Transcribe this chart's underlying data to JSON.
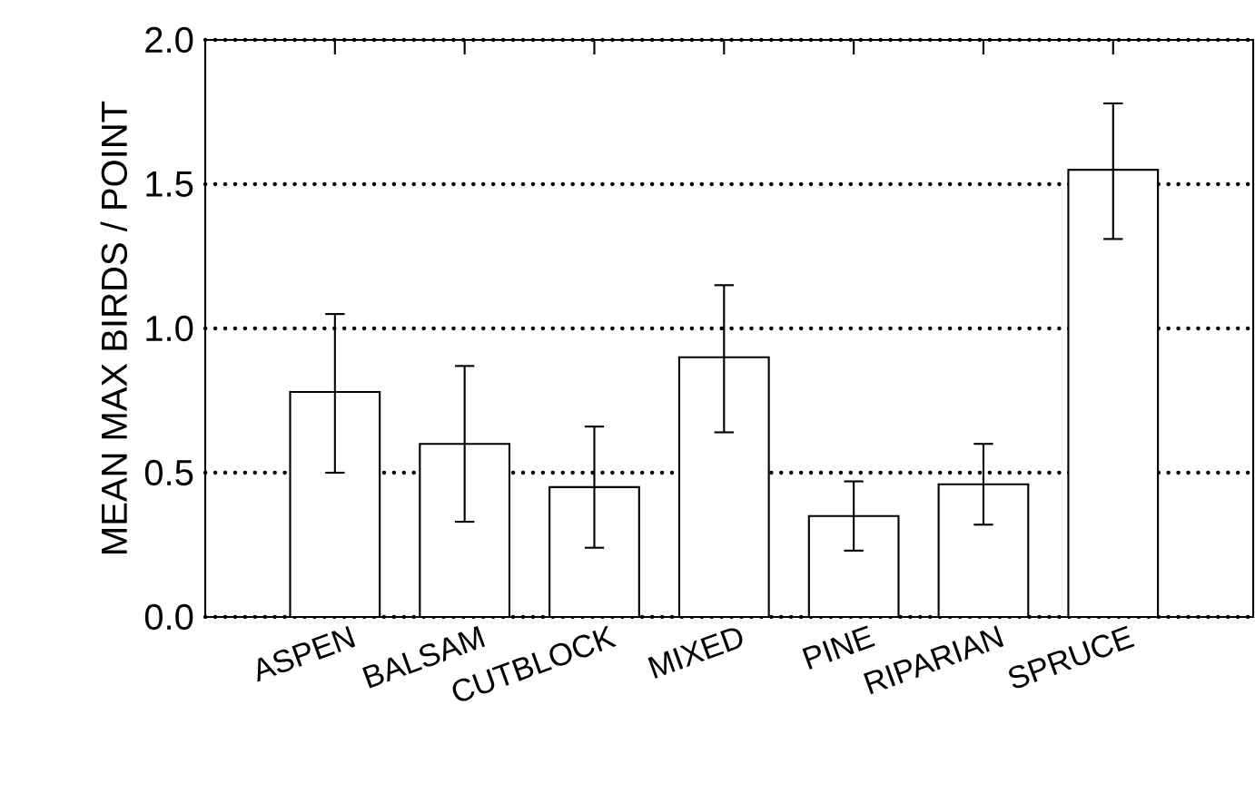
{
  "chart_data": {
    "type": "bar",
    "ylabel": "MEAN MAX BIRDS / POINT",
    "categories": [
      "ASPEN",
      "BALSAM",
      "CUTBLOCK",
      "MIXED",
      "PINE",
      "RIPARIAN",
      "SPRUCE"
    ],
    "values": [
      0.78,
      0.6,
      0.45,
      0.9,
      0.35,
      0.46,
      1.55
    ],
    "errors": [
      [
        0.5,
        1.05
      ],
      [
        0.33,
        0.87
      ],
      [
        0.24,
        0.66
      ],
      [
        0.64,
        1.15
      ],
      [
        0.23,
        0.47
      ],
      [
        0.32,
        0.6
      ],
      [
        1.31,
        1.78
      ]
    ],
    "color": "#ffffff",
    "ylim": [
      0,
      2
    ],
    "yticks": [
      {
        "value": 0,
        "label": "0.0"
      },
      {
        "value": 0.5,
        "label": "0.5"
      },
      {
        "value": 1,
        "label": "1.0"
      },
      {
        "value": 1.5,
        "label": "1.5"
      },
      {
        "value": 2,
        "label": "2.0"
      }
    ],
    "grid": "y"
  }
}
